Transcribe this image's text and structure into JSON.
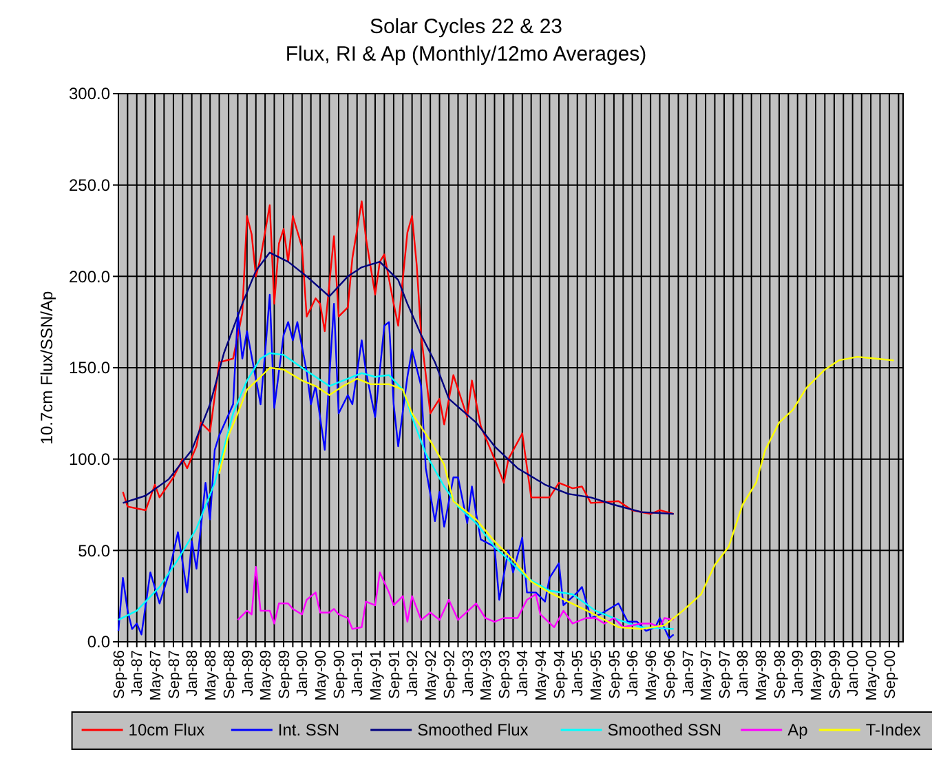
{
  "chart_data": {
    "type": "line",
    "title": "Solar Cycles 22 & 23",
    "subtitle": "Flux, RI & Ap (Monthly/12mo Averages)",
    "ylabel": "10.7cm Flux/SSN/Ap",
    "xlim": [
      "1986-09",
      "2000-12"
    ],
    "ylim": [
      0,
      300
    ],
    "yticks": [
      {
        "value": 0,
        "label": "0.0"
      },
      {
        "value": 50,
        "label": "50.0"
      },
      {
        "value": 100,
        "label": "100.0"
      },
      {
        "value": 150,
        "label": "150.0"
      },
      {
        "value": 200,
        "label": "200.0"
      },
      {
        "value": 250,
        "label": "250.0"
      },
      {
        "value": 300,
        "label": "300.0"
      }
    ],
    "xticks": [
      {
        "value": "1986-09",
        "label": "Sep-86"
      },
      {
        "value": "1986-11",
        "label": null
      },
      {
        "value": "1987-01",
        "label": "Jan-87"
      },
      {
        "value": "1987-03",
        "label": null
      },
      {
        "value": "1987-05",
        "label": "May-87"
      },
      {
        "value": "1987-07",
        "label": null
      },
      {
        "value": "1987-09",
        "label": "Sep-87"
      },
      {
        "value": "1987-11",
        "label": null
      },
      {
        "value": "1988-01",
        "label": "Jan-88"
      },
      {
        "value": "1988-03",
        "label": null
      },
      {
        "value": "1988-05",
        "label": "May-88"
      },
      {
        "value": "1988-07",
        "label": null
      },
      {
        "value": "1988-09",
        "label": "Sep-88"
      },
      {
        "value": "1988-11",
        "label": null
      },
      {
        "value": "1989-01",
        "label": "Jan-89"
      },
      {
        "value": "1989-03",
        "label": null
      },
      {
        "value": "1989-05",
        "label": "May-89"
      },
      {
        "value": "1989-07",
        "label": null
      },
      {
        "value": "1989-09",
        "label": "Sep-89"
      },
      {
        "value": "1989-11",
        "label": null
      },
      {
        "value": "1990-01",
        "label": "Jan-90"
      },
      {
        "value": "1990-03",
        "label": null
      },
      {
        "value": "1990-05",
        "label": "May-90"
      },
      {
        "value": "1990-07",
        "label": null
      },
      {
        "value": "1990-09",
        "label": "Sep-90"
      },
      {
        "value": "1990-11",
        "label": null
      },
      {
        "value": "1991-01",
        "label": "Jan-91"
      },
      {
        "value": "1991-03",
        "label": null
      },
      {
        "value": "1991-05",
        "label": "May-91"
      },
      {
        "value": "1991-07",
        "label": null
      },
      {
        "value": "1991-09",
        "label": "Sep-91"
      },
      {
        "value": "1991-11",
        "label": null
      },
      {
        "value": "1992-01",
        "label": "Jan-92"
      },
      {
        "value": "1992-03",
        "label": null
      },
      {
        "value": "1992-05",
        "label": "May-92"
      },
      {
        "value": "1992-07",
        "label": null
      },
      {
        "value": "1992-09",
        "label": "Sep-92"
      },
      {
        "value": "1992-11",
        "label": null
      },
      {
        "value": "1993-01",
        "label": "Jan-93"
      },
      {
        "value": "1993-03",
        "label": null
      },
      {
        "value": "1993-05",
        "label": "May-93"
      },
      {
        "value": "1993-07",
        "label": null
      },
      {
        "value": "1993-09",
        "label": "Sep-93"
      },
      {
        "value": "1993-11",
        "label": null
      },
      {
        "value": "1994-01",
        "label": "Jan-94"
      },
      {
        "value": "1994-03",
        "label": null
      },
      {
        "value": "1994-05",
        "label": "May-94"
      },
      {
        "value": "1994-07",
        "label": null
      },
      {
        "value": "1994-09",
        "label": "Sep-94"
      },
      {
        "value": "1994-11",
        "label": null
      },
      {
        "value": "1995-01",
        "label": "Jan-95"
      },
      {
        "value": "1995-03",
        "label": null
      },
      {
        "value": "1995-05",
        "label": "May-95"
      },
      {
        "value": "1995-07",
        "label": null
      },
      {
        "value": "1995-09",
        "label": "Sep-95"
      },
      {
        "value": "1995-11",
        "label": null
      },
      {
        "value": "1996-01",
        "label": "Jan-96"
      },
      {
        "value": "1996-03",
        "label": null
      },
      {
        "value": "1996-05",
        "label": "May-96"
      },
      {
        "value": "1996-07",
        "label": null
      },
      {
        "value": "1996-09",
        "label": "Sep-96"
      },
      {
        "value": "1996-11",
        "label": null
      },
      {
        "value": "1997-01",
        "label": "Jan-97"
      },
      {
        "value": "1997-03",
        "label": null
      },
      {
        "value": "1997-05",
        "label": "May-97"
      },
      {
        "value": "1997-07",
        "label": null
      },
      {
        "value": "1997-09",
        "label": "Sep-97"
      },
      {
        "value": "1997-11",
        "label": null
      },
      {
        "value": "1998-01",
        "label": "Jan-98"
      },
      {
        "value": "1998-03",
        "label": null
      },
      {
        "value": "1998-05",
        "label": "May-98"
      },
      {
        "value": "1998-07",
        "label": null
      },
      {
        "value": "1998-09",
        "label": "Sep-98"
      },
      {
        "value": "1998-11",
        "label": null
      },
      {
        "value": "1999-01",
        "label": "Jan-99"
      },
      {
        "value": "1999-03",
        "label": null
      },
      {
        "value": "1999-05",
        "label": "May-99"
      },
      {
        "value": "1999-07",
        "label": null
      },
      {
        "value": "1999-09",
        "label": "Sep-99"
      },
      {
        "value": "1999-11",
        "label": null
      },
      {
        "value": "2000-01",
        "label": "Jan-00"
      },
      {
        "value": "2000-03",
        "label": null
      },
      {
        "value": "2000-05",
        "label": "May-00"
      },
      {
        "value": "2000-07",
        "label": null
      },
      {
        "value": "2000-09",
        "label": "Sep-00"
      },
      {
        "value": "2000-11",
        "label": null
      }
    ],
    "grid": true,
    "legend": "bottom",
    "series": [
      {
        "name": "10cm Flux",
        "color": "#ff0000",
        "x": [
          "1986-10",
          "1986-11",
          "1987-03",
          "1987-05",
          "1987-06",
          "1987-09",
          "1987-11",
          "1987-12",
          "1988-02",
          "1988-03",
          "1988-05",
          "1988-07",
          "1988-10",
          "1988-12",
          "1989-01",
          "1989-02",
          "1989-03",
          "1989-04",
          "1989-06",
          "1989-07",
          "1989-08",
          "1989-09",
          "1989-10",
          "1989-11",
          "1990-01",
          "1990-02",
          "1990-04",
          "1990-05",
          "1990-06",
          "1990-08",
          "1990-09",
          "1990-11",
          "1990-12",
          "1991-02",
          "1991-03",
          "1991-05",
          "1991-06",
          "1991-07",
          "1991-09",
          "1991-10",
          "1991-12",
          "1992-01",
          "1992-02",
          "1992-03",
          "1992-05",
          "1992-07",
          "1992-08",
          "1992-10",
          "1993-01",
          "1993-02",
          "1993-04",
          "1993-07",
          "1993-09",
          "1993-10",
          "1994-01",
          "1994-03",
          "1994-07",
          "1994-09",
          "1994-12",
          "1995-02",
          "1995-04",
          "1995-10",
          "1996-01",
          "1996-05",
          "1996-07",
          "1996-10"
        ],
        "values": [
          82,
          74,
          72,
          86,
          79,
          90,
          100,
          95,
          107,
          120,
          115,
          153,
          155,
          180,
          233,
          223,
          200,
          210,
          239,
          185,
          218,
          226,
          208,
          233,
          216,
          178,
          188,
          185,
          170,
          222,
          178,
          183,
          210,
          241,
          221,
          190,
          208,
          212,
          185,
          173,
          224,
          233,
          206,
          168,
          125,
          133,
          119,
          146,
          123,
          143,
          118,
          100,
          87,
          100,
          114,
          79,
          79,
          87,
          84,
          85,
          76,
          77,
          72,
          70,
          72,
          70
        ]
      },
      {
        "name": "Int. SSN",
        "color": "#0000ff",
        "x": [
          "1986-09",
          "1986-10",
          "1986-11",
          "1986-12",
          "1987-01",
          "1987-02",
          "1987-04",
          "1987-06",
          "1987-08",
          "1987-10",
          "1987-12",
          "1988-01",
          "1988-02",
          "1988-04",
          "1988-05",
          "1988-06",
          "1988-07",
          "1988-10",
          "1988-11",
          "1988-12",
          "1989-01",
          "1989-04",
          "1989-05",
          "1989-06",
          "1989-07",
          "1989-09",
          "1989-10",
          "1989-11",
          "1989-12",
          "1990-02",
          "1990-03",
          "1990-04",
          "1990-06",
          "1990-08",
          "1990-09",
          "1990-11",
          "1990-12",
          "1991-02",
          "1991-03",
          "1991-05",
          "1991-07",
          "1991-08",
          "1991-09",
          "1991-10",
          "1991-12",
          "1992-01",
          "1992-03",
          "1992-04",
          "1992-06",
          "1992-07",
          "1992-08",
          "1992-10",
          "1992-11",
          "1993-01",
          "1993-02",
          "1993-03",
          "1993-04",
          "1993-07",
          "1993-08",
          "1993-10",
          "1993-11",
          "1994-01",
          "1994-02",
          "1994-04",
          "1994-06",
          "1994-07",
          "1994-09",
          "1994-10",
          "1995-01",
          "1995-02",
          "1995-04",
          "1995-06",
          "1995-10",
          "1995-12",
          "1996-02",
          "1996-04",
          "1996-06",
          "1996-07",
          "1996-09",
          "1996-10"
        ],
        "values": [
          6,
          35,
          17,
          7,
          10,
          4,
          38,
          21,
          37,
          60,
          27,
          55,
          40,
          87,
          67,
          105,
          113,
          130,
          180,
          155,
          170,
          130,
          158,
          190,
          128,
          168,
          175,
          165,
          175,
          148,
          130,
          140,
          105,
          185,
          125,
          135,
          130,
          165,
          148,
          123,
          173,
          175,
          130,
          107,
          145,
          160,
          140,
          95,
          66,
          82,
          63,
          90,
          90,
          65,
          85,
          70,
          56,
          52,
          23,
          50,
          38,
          57,
          27,
          27,
          22,
          35,
          43,
          20,
          27,
          30,
          13,
          15,
          21,
          11,
          11,
          6,
          8,
          13,
          2,
          4
        ]
      },
      {
        "name": "Smoothed Flux",
        "color": "#000080",
        "x": [
          "1986-10",
          "1987-03",
          "1987-08",
          "1988-01",
          "1988-05",
          "1988-08",
          "1988-12",
          "1989-03",
          "1989-06",
          "1989-10",
          "1990-02",
          "1990-07",
          "1990-11",
          "1991-02",
          "1991-06",
          "1991-10",
          "1991-12",
          "1992-03",
          "1992-06",
          "1992-09",
          "1993-03",
          "1993-07",
          "1993-12",
          "1994-06",
          "1994-11",
          "1995-04",
          "1995-09",
          "1996-03",
          "1996-10"
        ],
        "values": [
          76,
          80,
          89,
          105,
          130,
          158,
          185,
          203,
          213,
          208,
          200,
          189,
          200,
          205,
          208,
          198,
          185,
          168,
          153,
          133,
          120,
          107,
          95,
          86,
          81,
          79,
          75,
          71,
          70
        ]
      },
      {
        "name": "Smoothed SSN",
        "color": "#00ffff",
        "x": [
          "1986-09",
          "1987-01",
          "1987-06",
          "1987-10",
          "1988-02",
          "1988-06",
          "1988-10",
          "1989-01",
          "1989-04",
          "1989-06",
          "1989-09",
          "1990-01",
          "1990-04",
          "1990-07",
          "1990-11",
          "1991-02",
          "1991-05",
          "1991-08",
          "1991-11",
          "1992-01",
          "1992-04",
          "1992-08",
          "1992-11",
          "1993-03",
          "1993-07",
          "1993-10",
          "1994-02",
          "1994-07",
          "1994-12",
          "1995-05",
          "1995-10",
          "1996-03",
          "1996-10"
        ],
        "values": [
          12,
          17,
          30,
          45,
          62,
          87,
          125,
          143,
          155,
          158,
          157,
          150,
          145,
          140,
          144,
          147,
          145,
          146,
          138,
          123,
          103,
          85,
          74,
          65,
          52,
          45,
          35,
          28,
          26,
          17,
          12,
          8,
          7
        ]
      },
      {
        "name": "Ap",
        "color": "#ff00ff",
        "x": [
          "1988-11",
          "1989-01",
          "1989-02",
          "1989-03",
          "1989-04",
          "1989-06",
          "1989-07",
          "1989-08",
          "1989-10",
          "1989-11",
          "1990-01",
          "1990-02",
          "1990-04",
          "1990-05",
          "1990-07",
          "1990-08",
          "1990-09",
          "1990-11",
          "1990-12",
          "1991-02",
          "1991-03",
          "1991-05",
          "1991-06",
          "1991-08",
          "1991-09",
          "1991-11",
          "1991-12",
          "1992-01",
          "1992-03",
          "1992-05",
          "1992-07",
          "1992-09",
          "1992-11",
          "1993-03",
          "1993-05",
          "1993-07",
          "1993-09",
          "1993-12",
          "1994-02",
          "1994-04",
          "1994-05",
          "1994-08",
          "1994-10",
          "1994-12",
          "1995-03",
          "1995-05",
          "1995-07",
          "1995-09",
          "1995-11",
          "1996-03",
          "1996-05",
          "1996-07",
          "1996-08",
          "1996-10"
        ],
        "values": [
          12,
          17,
          15,
          41,
          17,
          17,
          10,
          21,
          21,
          18,
          15,
          23,
          27,
          16,
          16,
          18,
          15,
          13,
          7,
          8,
          22,
          20,
          38,
          27,
          20,
          25,
          11,
          25,
          12,
          16,
          12,
          23,
          12,
          21,
          13,
          11,
          13,
          13,
          23,
          26,
          15,
          8,
          17,
          10,
          13,
          13,
          10,
          13,
          8,
          10,
          10,
          8,
          13,
          12
        ]
      },
      {
        "name": "T-Index",
        "color": "#ffff00",
        "x": [
          "1988-07",
          "1988-09",
          "1988-11",
          "1989-01",
          "1989-04",
          "1989-06",
          "1989-09",
          "1990-01",
          "1990-04",
          "1990-07",
          "1990-10",
          "1991-01",
          "1991-04",
          "1991-08",
          "1991-11",
          "1992-01",
          "1992-05",
          "1992-08",
          "1992-10",
          "1993-03",
          "1993-07",
          "1993-11",
          "1994-03",
          "1994-07",
          "1994-11",
          "1995-04",
          "1995-10",
          "1996-03",
          "1996-08",
          "1996-12",
          "1997-04",
          "1997-07",
          "1997-10",
          "1998-01",
          "1998-04",
          "1998-06",
          "1998-09",
          "1998-12",
          "1999-03",
          "1999-07",
          "1999-10",
          "2000-02",
          "2000-06",
          "2000-10"
        ],
        "values": [
          92,
          113,
          125,
          138,
          145,
          150,
          149,
          143,
          140,
          135,
          140,
          144,
          141,
          141,
          138,
          125,
          110,
          97,
          77,
          67,
          55,
          45,
          33,
          27,
          22,
          16,
          8,
          7,
          9,
          17,
          26,
          42,
          52,
          75,
          87,
          105,
          120,
          127,
          139,
          149,
          154,
          156,
          155,
          154
        ]
      }
    ]
  }
}
